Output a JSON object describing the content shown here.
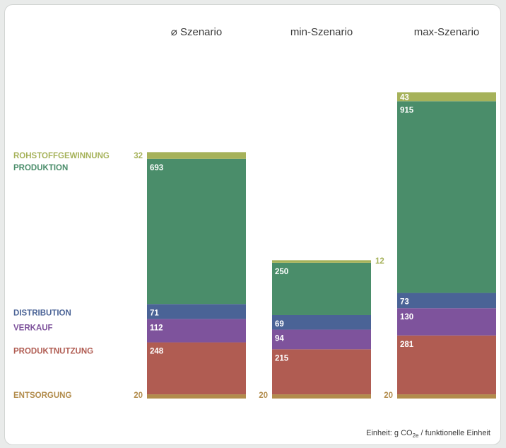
{
  "chart_data": {
    "type": "bar",
    "stacked": true,
    "categories": [
      "⌀ Szenario",
      "min-Szenario",
      "max-Szenario"
    ],
    "series": [
      {
        "name": "ENTSORGUNG",
        "values": [
          20,
          20,
          20
        ],
        "color": "#b28c4c"
      },
      {
        "name": "PRODUKTNUTZUNG",
        "values": [
          248,
          215,
          281
        ],
        "color": "#b05c52"
      },
      {
        "name": "VERKAUF",
        "values": [
          112,
          94,
          130
        ],
        "color": "#7e539c"
      },
      {
        "name": "DISTRIBUTION",
        "values": [
          71,
          69,
          73
        ],
        "color": "#4a6396"
      },
      {
        "name": "PRODUKTION",
        "values": [
          693,
          250,
          915
        ],
        "color": "#4a8d6a"
      },
      {
        "name": "ROHSTOFFGEWINNUNG",
        "values": [
          32,
          12,
          43
        ],
        "color": "#a6b25a"
      }
    ],
    "legend_position": "left",
    "unit_label": {
      "prefix": "Einheit: g CO",
      "sub": "2e",
      "suffix": " / funktionelle Einheit"
    }
  }
}
